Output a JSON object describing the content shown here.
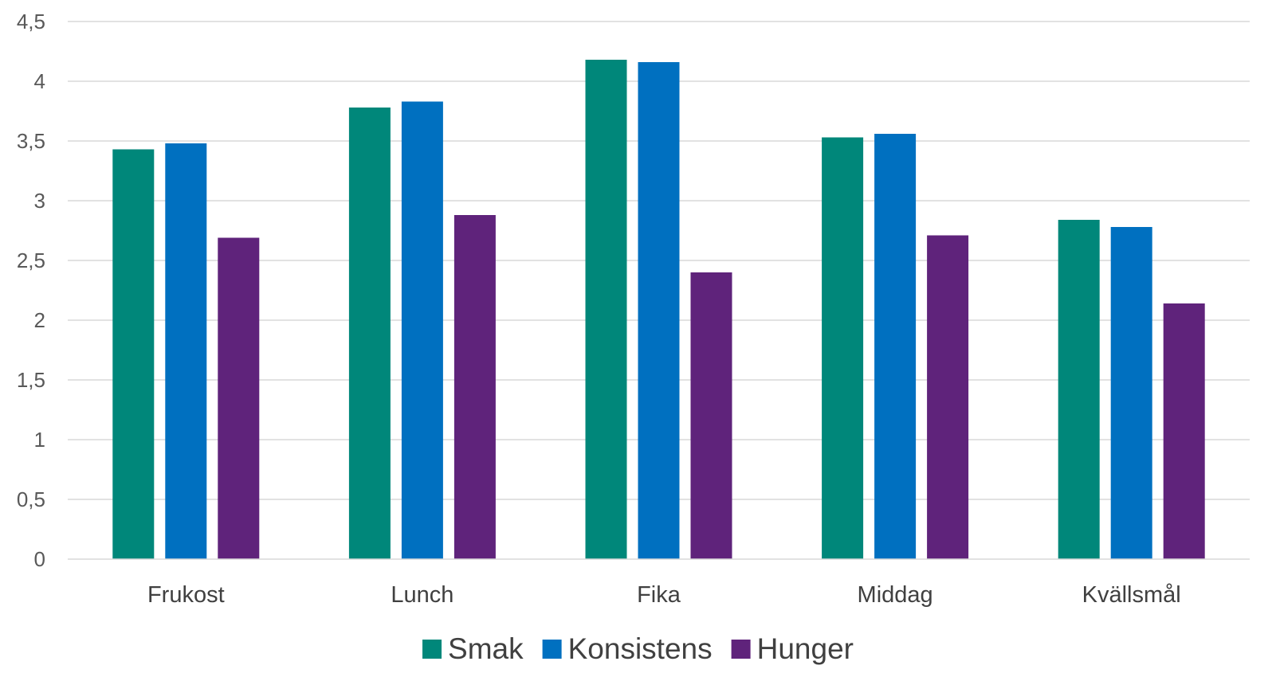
{
  "chart_data": {
    "type": "bar",
    "categories": [
      "Frukost",
      "Lunch",
      "Fika",
      "Middag",
      "Kvällsmål"
    ],
    "series": [
      {
        "name": "Smak",
        "color": "#00877a",
        "values": [
          3.43,
          3.78,
          4.18,
          3.53,
          2.84
        ]
      },
      {
        "name": "Konsistens",
        "color": "#0070c0",
        "values": [
          3.48,
          3.83,
          4.16,
          3.56,
          2.78
        ]
      },
      {
        "name": "Hunger",
        "color": "#5f237b",
        "values": [
          2.69,
          2.88,
          2.4,
          2.71,
          2.14
        ]
      }
    ],
    "y_ticks": [
      "0",
      "0,5",
      "1",
      "1,5",
      "2",
      "2,5",
      "3",
      "3,5",
      "4",
      "4,5"
    ],
    "ylim": [
      0,
      4.5
    ],
    "grid": true,
    "legend_position": "bottom"
  }
}
